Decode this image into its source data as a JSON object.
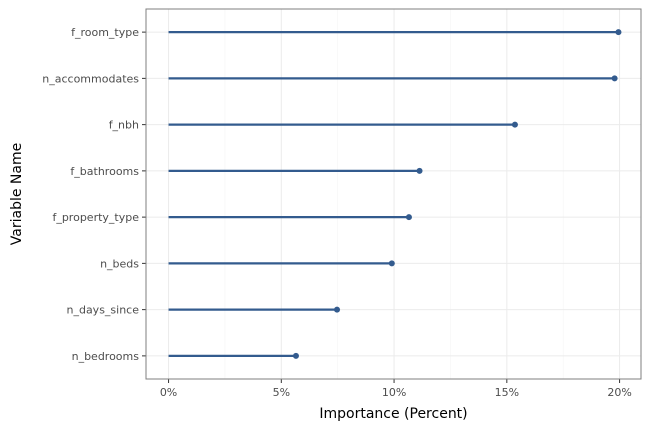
{
  "chart_data": {
    "type": "lollipop",
    "orientation": "horizontal",
    "title": "",
    "xlabel": "Importance (Percent)",
    "ylabel": "Variable Name",
    "xlim": [
      -0.01,
      0.2095
    ],
    "x_ticks": [
      0,
      0.05,
      0.1,
      0.15,
      0.2
    ],
    "x_tick_labels": [
      "0%",
      "5%",
      "10%",
      "15%",
      "20%"
    ],
    "categories": [
      "f_room_type",
      "n_accommodates",
      "f_nbh",
      "f_bathrooms",
      "f_property_type",
      "n_beds",
      "n_days_since",
      "n_bedrooms"
    ],
    "values": [
      0.1995,
      0.1978,
      0.1536,
      0.1113,
      0.1066,
      0.099,
      0.0747,
      0.0565
    ],
    "grid": true,
    "colors": {
      "series": "#335b8e",
      "panel_border": "#7f7f7f",
      "grid_major": "#ebebeb",
      "grid_minor": "#f5f5f5",
      "tick_label": "#4d4d4d"
    }
  }
}
